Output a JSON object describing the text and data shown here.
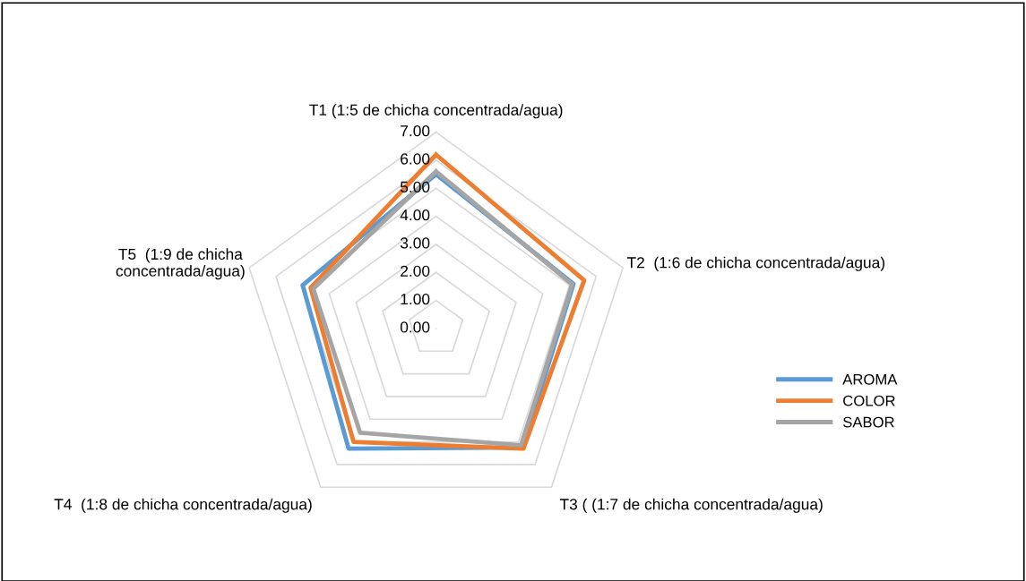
{
  "chart_data": {
    "type": "radar",
    "categories": [
      "T1 (1:5 de chicha concentrada/agua)",
      "T2  (1:6 de chicha concentrada/agua)",
      "T3 ( (1:7 de chicha concentrada/agua)",
      "T4  (1:8 de chicha concentrada/agua)",
      "T5  (1:9 de chicha concentrada/agua)"
    ],
    "series": [
      {
        "name": "AROMA",
        "color": "#5b9bd5",
        "values": [
          5.5,
          5.15,
          5.25,
          5.3,
          5.0
        ]
      },
      {
        "name": "COLOR",
        "color": "#ed7d31",
        "values": [
          6.2,
          5.55,
          5.3,
          5.0,
          4.7
        ]
      },
      {
        "name": "SABOR",
        "color": "#a5a5a5",
        "values": [
          5.6,
          5.1,
          5.15,
          4.6,
          4.6
        ]
      }
    ],
    "ylim": [
      0,
      7
    ],
    "yticks": [
      {
        "value": 0,
        "label": "0.00"
      },
      {
        "value": 1,
        "label": "1.00"
      },
      {
        "value": 2,
        "label": "2.00"
      },
      {
        "value": 3,
        "label": "3.00"
      },
      {
        "value": 4,
        "label": "4.00"
      },
      {
        "value": 5,
        "label": "5.00"
      },
      {
        "value": 6,
        "label": "6.00"
      },
      {
        "value": 7,
        "label": "7.00"
      }
    ],
    "grid": true,
    "legend": "right",
    "marker": "none",
    "line_style": "solid"
  }
}
